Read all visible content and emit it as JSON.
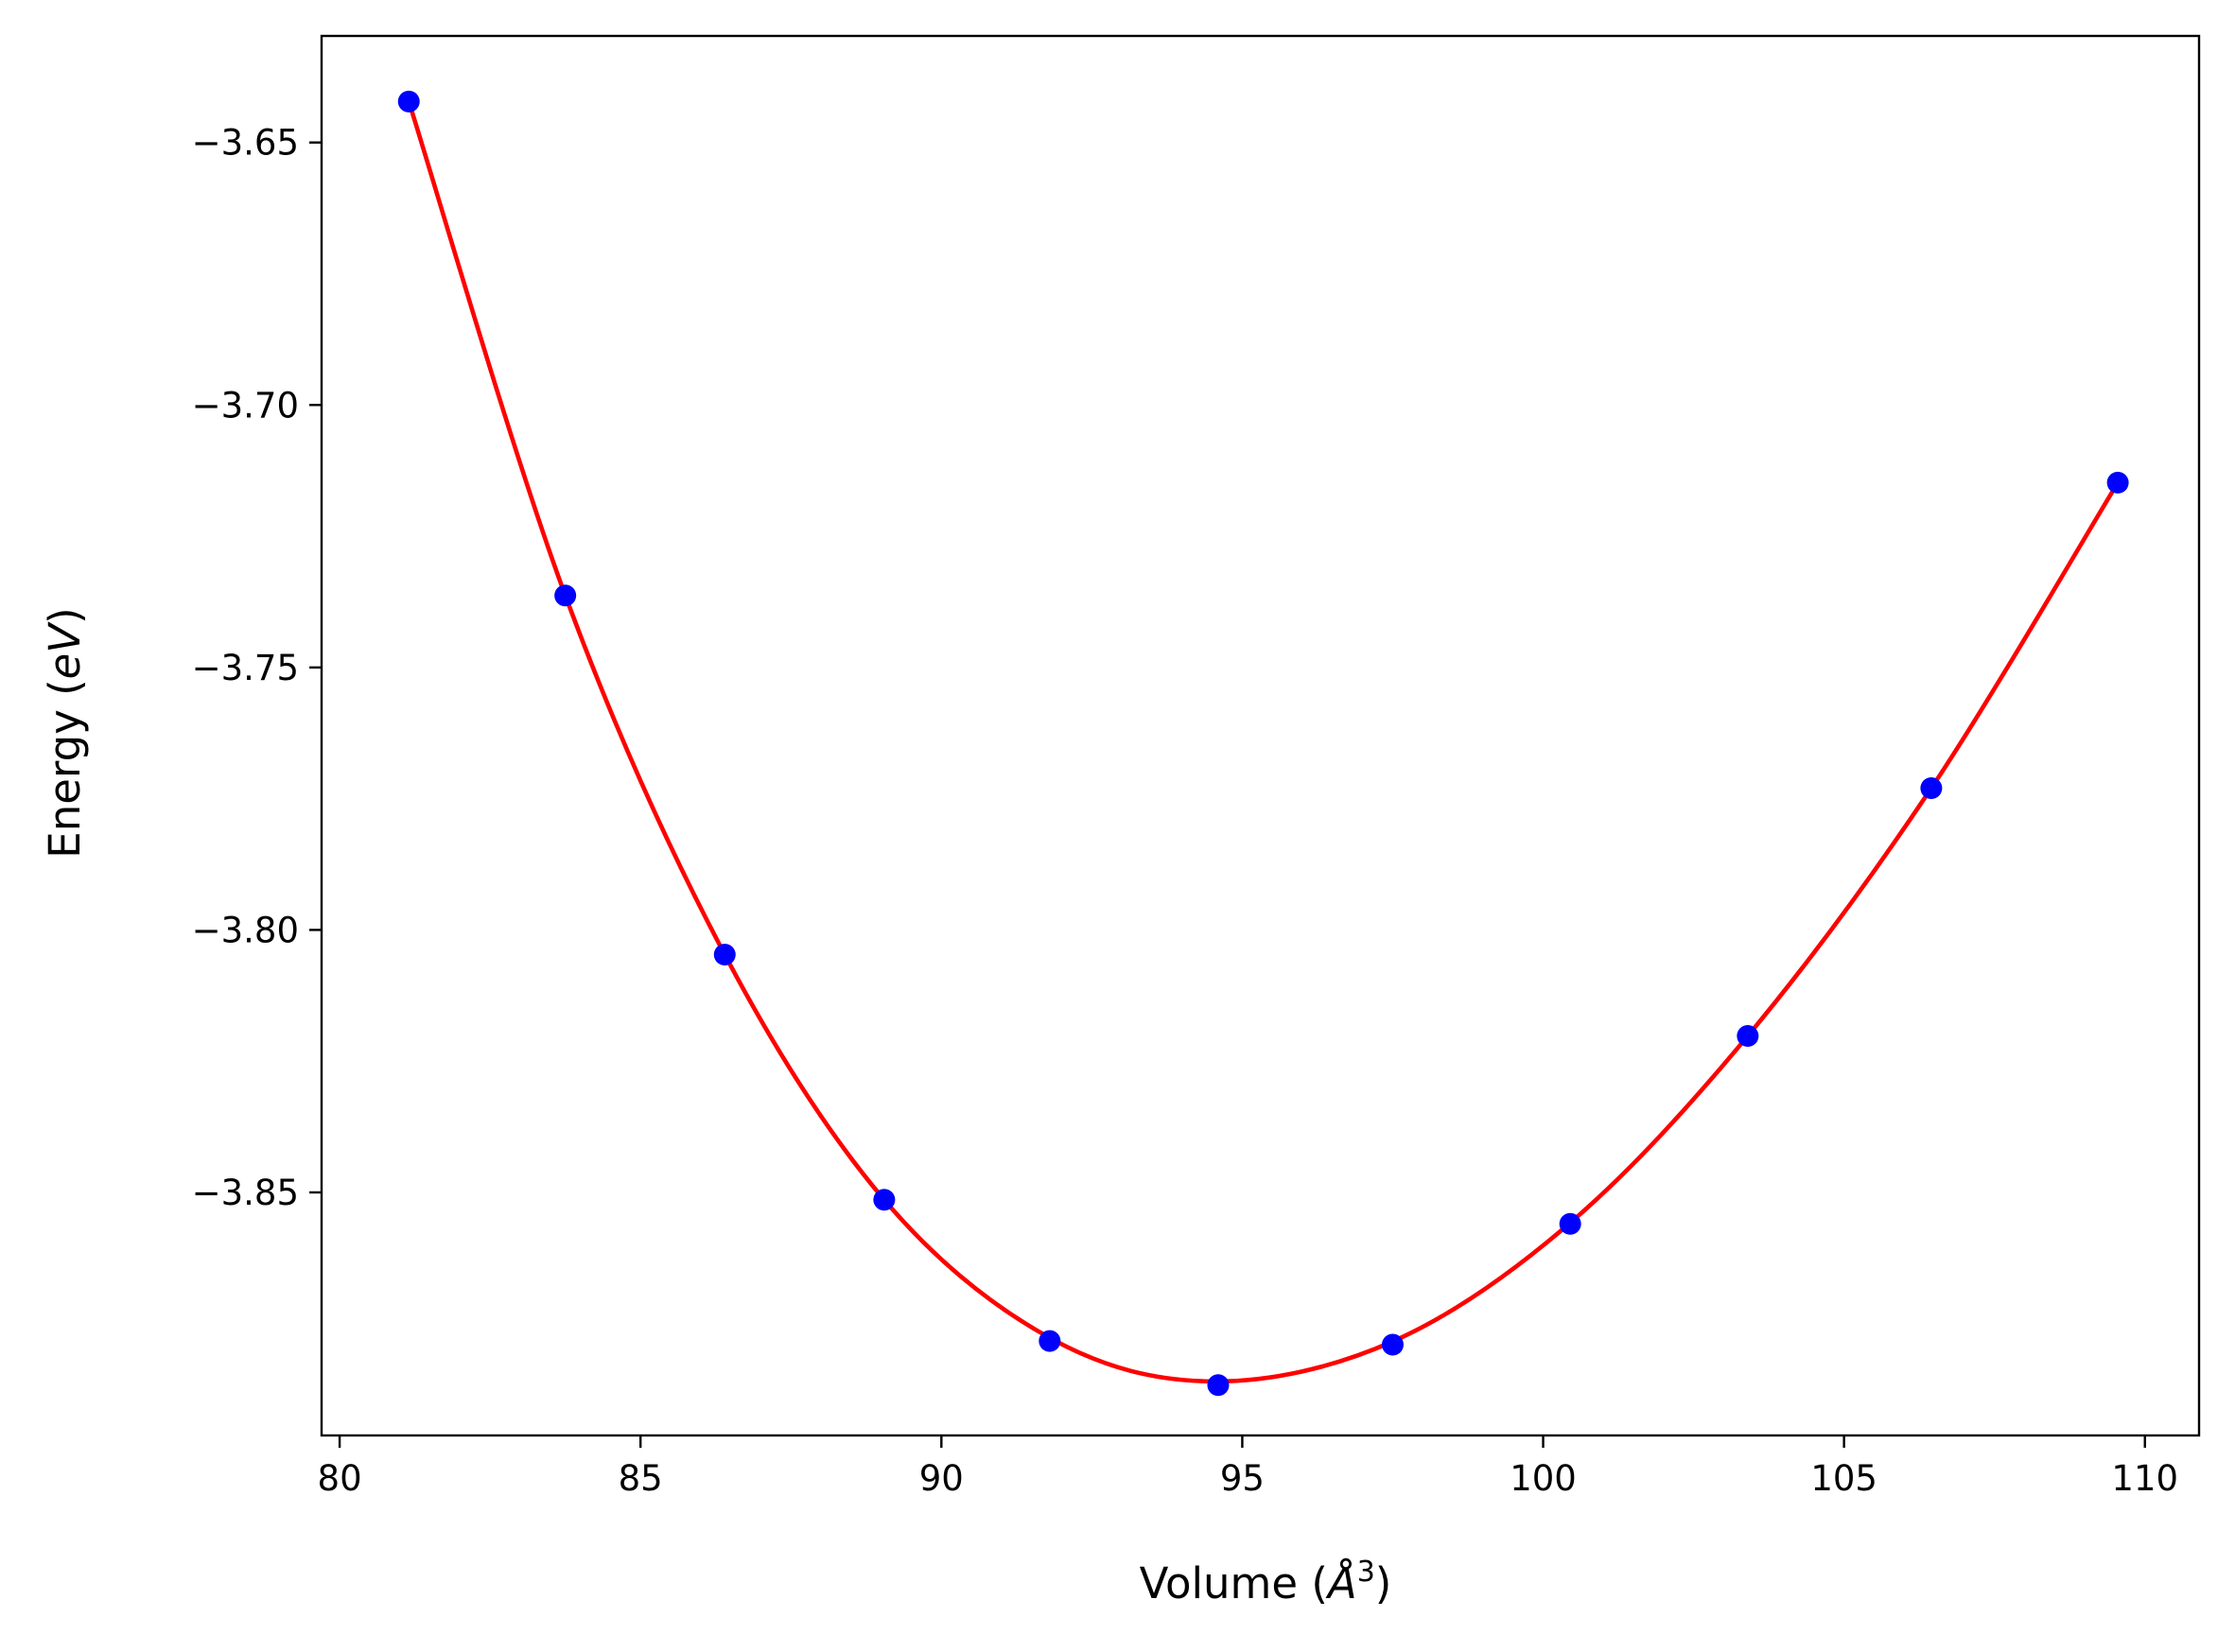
{
  "chart_data": {
    "type": "line",
    "title": "",
    "xlabel": {
      "prefix": "Volume (",
      "symbol": "Å",
      "superscript": "3",
      "suffix": ")"
    },
    "ylabel": {
      "prefix": "Energy (",
      "symbol": "eV",
      "suffix": ")"
    },
    "xlim": [
      79.7,
      110.9
    ],
    "ylim": [
      -3.8963,
      -3.6297
    ],
    "xticks": [
      80,
      85,
      90,
      95,
      100,
      105,
      110
    ],
    "xtick_labels": [
      "80",
      "85",
      "90",
      "95",
      "100",
      "105",
      "110"
    ],
    "yticks": [
      -3.65,
      -3.7,
      -3.75,
      -3.8,
      -3.85
    ],
    "ytick_labels": [
      "−3.65",
      "−3.70",
      "−3.75",
      "−3.80",
      "−3.85"
    ],
    "grid": false,
    "legend": "none",
    "series": [
      {
        "kind": "scatter",
        "color": "#0000ff",
        "x": [
          81.15,
          83.75,
          86.4,
          89.05,
          91.8,
          94.6,
          97.5,
          100.45,
          103.4,
          106.45,
          109.55
        ],
        "y": [
          -3.6422,
          -3.7363,
          -3.8047,
          -3.8514,
          -3.8783,
          -3.8867,
          -3.879,
          -3.856,
          -3.8202,
          -3.773,
          -3.7148
        ]
      },
      {
        "kind": "line",
        "color": "#ff0000",
        "x_range": [
          81.15,
          109.55
        ],
        "minimum": {
          "x": 94.5,
          "y": -3.886
        },
        "sample_points": [
          [
            81.15,
            -3.6422
          ],
          [
            83.75,
            -3.7363
          ],
          [
            86.4,
            -3.8047
          ],
          [
            89.05,
            -3.8514
          ],
          [
            91.8,
            -3.8777
          ],
          [
            94.5,
            -3.886
          ],
          [
            97.5,
            -3.8784
          ],
          [
            100.45,
            -3.8558
          ],
          [
            103.4,
            -3.8202
          ],
          [
            106.45,
            -3.773
          ],
          [
            109.55,
            -3.7148
          ]
        ]
      }
    ]
  }
}
